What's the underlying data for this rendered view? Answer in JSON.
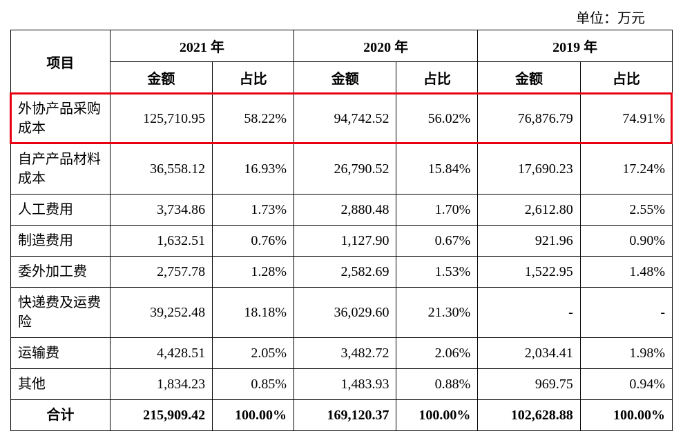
{
  "unit_label": "单位：万元",
  "header": {
    "item": "项目",
    "years": [
      "2021 年",
      "2020 年",
      "2019 年"
    ],
    "sub": [
      "金额",
      "占比"
    ]
  },
  "rows": [
    {
      "label": "外协产品采购成本",
      "v": [
        "125,710.95",
        "58.22%",
        "94,742.52",
        "56.02%",
        "76,876.79",
        "74.91%"
      ],
      "highlight": true
    },
    {
      "label": "自产产品材料成本",
      "v": [
        "36,558.12",
        "16.93%",
        "26,790.52",
        "15.84%",
        "17,690.23",
        "17.24%"
      ]
    },
    {
      "label": "人工费用",
      "v": [
        "3,734.86",
        "1.73%",
        "2,880.48",
        "1.70%",
        "2,612.80",
        "2.55%"
      ]
    },
    {
      "label": "制造费用",
      "v": [
        "1,632.51",
        "0.76%",
        "1,127.90",
        "0.67%",
        "921.96",
        "0.90%"
      ]
    },
    {
      "label": "委外加工费",
      "v": [
        "2,757.78",
        "1.28%",
        "2,582.69",
        "1.53%",
        "1,522.95",
        "1.48%"
      ]
    },
    {
      "label": "快递费及运费险",
      "v": [
        "39,252.48",
        "18.18%",
        "36,029.60",
        "21.30%",
        "-",
        "-"
      ]
    },
    {
      "label": "运输费",
      "v": [
        "4,428.51",
        "2.05%",
        "3,482.72",
        "2.06%",
        "2,034.41",
        "1.98%"
      ]
    },
    {
      "label": "其他",
      "v": [
        "1,834.23",
        "0.85%",
        "1,483.93",
        "0.88%",
        "969.75",
        "0.94%"
      ]
    }
  ],
  "total": {
    "label": "合计",
    "v": [
      "215,909.42",
      "100.00%",
      "169,120.37",
      "100.00%",
      "102,628.88",
      "100.00%"
    ]
  },
  "highlight_color": "#e60012"
}
